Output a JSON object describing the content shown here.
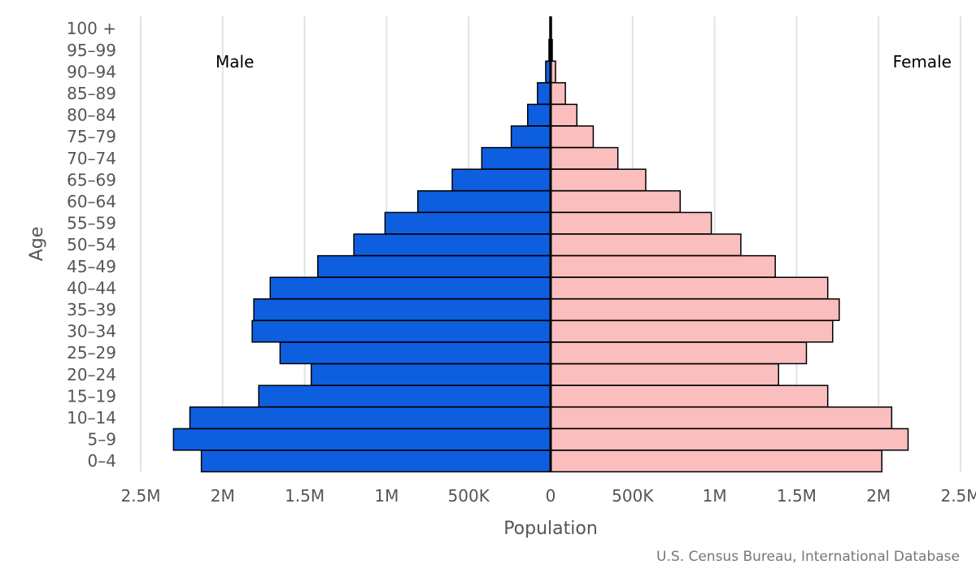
{
  "chart_data": {
    "type": "bar",
    "orientation": "horizontal",
    "subtype": "population-pyramid",
    "title": "",
    "xlabel": "Population",
    "ylabel": "Age",
    "categories": [
      "0-4",
      "5-9",
      "10-14",
      "15-19",
      "20-24",
      "25-29",
      "30-34",
      "35-39",
      "40-44",
      "45-49",
      "50-54",
      "55-59",
      "60-64",
      "65-69",
      "70-74",
      "75-79",
      "80-84",
      "85-89",
      "90-94",
      "95-99",
      "100 +"
    ],
    "category_labels": [
      "0–4",
      "5–9",
      "10–14",
      "15–19",
      "20–24",
      "25–29",
      "30–34",
      "35–39",
      "40–44",
      "45–49",
      "50–54",
      "55–59",
      "60–64",
      "65–69",
      "70–74",
      "75–79",
      "80–84",
      "85–89",
      "90–94",
      "95–99",
      "100 +"
    ],
    "series": [
      {
        "name": "Male",
        "color": "#0d5fe0",
        "values": [
          2130000,
          2300000,
          2200000,
          1780000,
          1460000,
          1650000,
          1820000,
          1810000,
          1710000,
          1420000,
          1200000,
          1010000,
          810000,
          600000,
          420000,
          240000,
          140000,
          80000,
          30000,
          10000,
          5000
        ]
      },
      {
        "name": "Female",
        "color": "#fbbebe",
        "values": [
          2020000,
          2180000,
          2080000,
          1690000,
          1390000,
          1560000,
          1720000,
          1760000,
          1690000,
          1370000,
          1160000,
          980000,
          790000,
          580000,
          410000,
          260000,
          160000,
          90000,
          30000,
          10000,
          5000
        ]
      }
    ],
    "xlim": [
      -2500000,
      2500000
    ],
    "x_ticks": [
      -2500000,
      -2000000,
      -1500000,
      -1000000,
      -500000,
      0,
      500000,
      1000000,
      1500000,
      2000000,
      2500000
    ],
    "x_tick_labels": [
      "2.5M",
      "2M",
      "1.5M",
      "1M",
      "500K",
      "0",
      "500K",
      "1M",
      "1.5M",
      "2M",
      "2.5M"
    ],
    "legend": {
      "left_label": "Male",
      "right_label": "Female"
    },
    "grid": true,
    "source": "U.S. Census Bureau, International Database"
  }
}
